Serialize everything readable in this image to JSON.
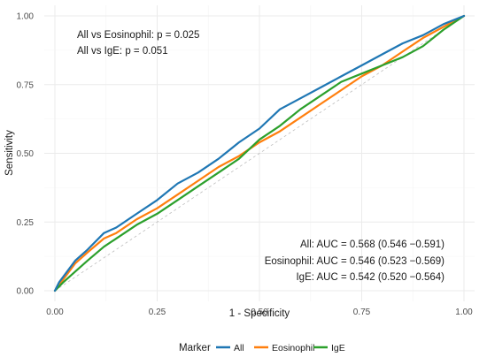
{
  "chart_data": {
    "type": "line",
    "title": "",
    "xlabel": "1 - Specificity",
    "ylabel": "Sensitivity",
    "xlim": [
      0,
      1
    ],
    "ylim": [
      0,
      1
    ],
    "x_ticks": [
      "0.00",
      "0.25",
      "0.50",
      "0.75",
      "1.00"
    ],
    "y_ticks": [
      "0.00",
      "0.25",
      "0.50",
      "0.75",
      "1.00"
    ],
    "grid": true,
    "diagonal_reference": true,
    "legend": {
      "title": "Marker",
      "placement": "bottom",
      "entries": [
        "All",
        "Eosinophil",
        "IgE"
      ]
    },
    "annotations_top_left": [
      "All vs Eosinophil: p = 0.025",
      "All vs IgE: p = 0.051"
    ],
    "annotations_bottom_right": [
      "All: AUC = 0.568 (0.546 −0.591)",
      "Eosinophil: AUC = 0.546 (0.523 −0.569)",
      "IgE: AUC = 0.542 (0.520 −0.564)"
    ],
    "series": [
      {
        "name": "All",
        "color": "#1f77b4",
        "points": [
          [
            0,
            0
          ],
          [
            0.01,
            0.03
          ],
          [
            0.03,
            0.07
          ],
          [
            0.05,
            0.11
          ],
          [
            0.08,
            0.15
          ],
          [
            0.12,
            0.21
          ],
          [
            0.15,
            0.23
          ],
          [
            0.2,
            0.28
          ],
          [
            0.25,
            0.33
          ],
          [
            0.3,
            0.39
          ],
          [
            0.35,
            0.43
          ],
          [
            0.4,
            0.48
          ],
          [
            0.45,
            0.54
          ],
          [
            0.5,
            0.59
          ],
          [
            0.55,
            0.66
          ],
          [
            0.6,
            0.7
          ],
          [
            0.65,
            0.74
          ],
          [
            0.7,
            0.78
          ],
          [
            0.75,
            0.82
          ],
          [
            0.8,
            0.86
          ],
          [
            0.85,
            0.9
          ],
          [
            0.9,
            0.93
          ],
          [
            0.95,
            0.97
          ],
          [
            1,
            1
          ]
        ]
      },
      {
        "name": "Eosinophil",
        "color": "#ff7f0e",
        "points": [
          [
            0,
            0
          ],
          [
            0.02,
            0.04
          ],
          [
            0.05,
            0.1
          ],
          [
            0.08,
            0.14
          ],
          [
            0.12,
            0.19
          ],
          [
            0.15,
            0.21
          ],
          [
            0.2,
            0.26
          ],
          [
            0.25,
            0.3
          ],
          [
            0.3,
            0.35
          ],
          [
            0.35,
            0.4
          ],
          [
            0.4,
            0.45
          ],
          [
            0.45,
            0.49
          ],
          [
            0.5,
            0.54
          ],
          [
            0.55,
            0.58
          ],
          [
            0.6,
            0.63
          ],
          [
            0.65,
            0.68
          ],
          [
            0.7,
            0.73
          ],
          [
            0.75,
            0.78
          ],
          [
            0.8,
            0.82
          ],
          [
            0.85,
            0.87
          ],
          [
            0.9,
            0.92
          ],
          [
            0.95,
            0.96
          ],
          [
            1,
            1
          ]
        ]
      },
      {
        "name": "IgE",
        "color": "#2ca02c",
        "points": [
          [
            0,
            0
          ],
          [
            0.02,
            0.03
          ],
          [
            0.05,
            0.07
          ],
          [
            0.08,
            0.11
          ],
          [
            0.12,
            0.16
          ],
          [
            0.15,
            0.19
          ],
          [
            0.2,
            0.24
          ],
          [
            0.25,
            0.28
          ],
          [
            0.3,
            0.33
          ],
          [
            0.35,
            0.38
          ],
          [
            0.4,
            0.43
          ],
          [
            0.45,
            0.48
          ],
          [
            0.5,
            0.55
          ],
          [
            0.55,
            0.6
          ],
          [
            0.6,
            0.66
          ],
          [
            0.65,
            0.71
          ],
          [
            0.7,
            0.76
          ],
          [
            0.75,
            0.79
          ],
          [
            0.8,
            0.82
          ],
          [
            0.85,
            0.85
          ],
          [
            0.9,
            0.89
          ],
          [
            0.95,
            0.95
          ],
          [
            1,
            1
          ]
        ]
      }
    ]
  }
}
